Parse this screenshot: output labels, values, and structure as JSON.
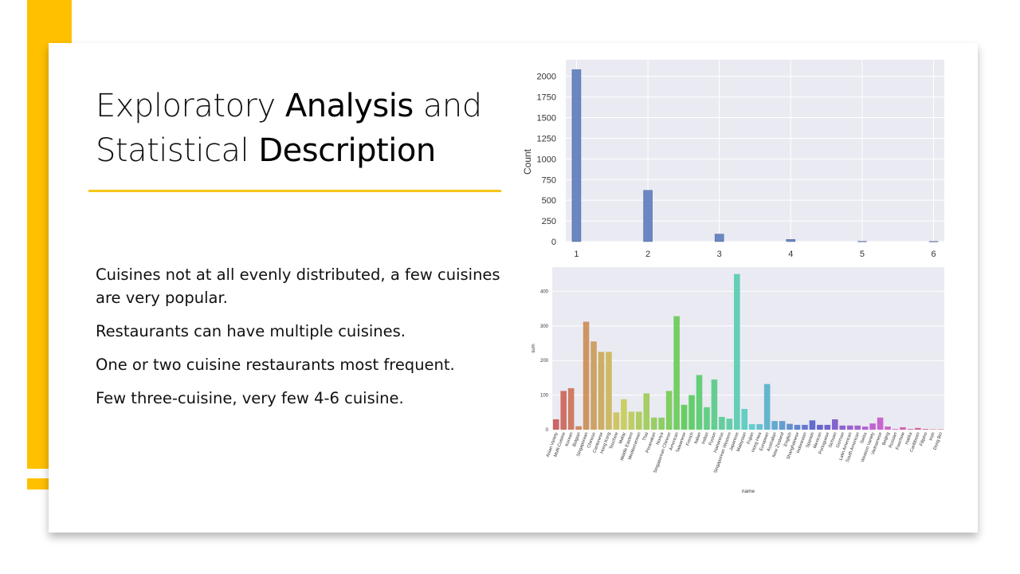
{
  "slide": {
    "title_part1": "Exploratory ",
    "title_bold1": "Analysis",
    "title_part2": " and",
    "title_part3": "Statistical ",
    "title_bold2": "Description",
    "bullets": [
      "Cuisines not at all evenly distributed, a few cuisines are very popular.",
      "Restaurants can have multiple cuisines.",
      "One or two cuisine restaurants most frequent.",
      "Few three-cuisine, very few 4-6 cuisine."
    ]
  },
  "chart_data": [
    {
      "type": "bar",
      "title": "",
      "xlabel": "",
      "ylabel": "Count",
      "x": [
        1,
        2,
        3,
        4,
        5,
        6
      ],
      "values": [
        2080,
        620,
        90,
        25,
        2,
        1
      ],
      "xticks": [
        "1",
        "2",
        "3",
        "4",
        "5",
        "6"
      ],
      "yticks": [
        "0",
        "250",
        "500",
        "750",
        "1000",
        "1250",
        "1500",
        "1750",
        "2000"
      ],
      "ylim": [
        0,
        2200
      ],
      "grid": true,
      "color": "#6A86C3"
    },
    {
      "type": "bar",
      "title": "",
      "xlabel": "name",
      "ylabel": "sum",
      "categories": [
        "Asian Variety",
        "Multi-Cuisine",
        "Korean",
        "Belgian",
        "Singaporean",
        "Chinese",
        "Cantonese",
        "Hong Kong",
        "Teochew",
        "Malay",
        "Middle Eastern",
        "Mediterranean",
        "Thai",
        "Peranakan",
        "Nonya",
        "Singaporean Chinese",
        "American",
        "Taiwanese",
        "French",
        "Italian",
        "Indian",
        "Fusion",
        "Hainanese",
        "Singaporean Western",
        "Japanese",
        "Malaysian",
        "Fujian",
        "Hong Hwa",
        "European",
        "Australian",
        "New Zealand",
        "English",
        "Shanghainese",
        "Indonesian",
        "Spanish",
        "Mexican",
        "Portuguese",
        "Sichuan",
        "German",
        "Latin American",
        "South American",
        "Swiss",
        "Western Variety",
        "Vietnamese",
        "Beijing",
        "Russian",
        "Foochow",
        "Hakka",
        "Caribbean",
        "Filipino",
        "Irish",
        "Dong Bei"
      ],
      "values": [
        30,
        112,
        120,
        10,
        312,
        255,
        225,
        225,
        50,
        88,
        52,
        52,
        105,
        35,
        35,
        112,
        328,
        72,
        100,
        158,
        65,
        145,
        37,
        32,
        450,
        60,
        16,
        16,
        132,
        25,
        25,
        17,
        14,
        14,
        27,
        14,
        14,
        30,
        12,
        12,
        12,
        9,
        18,
        35,
        9,
        2,
        7,
        2,
        5,
        2,
        1,
        1
      ],
      "yticks": [
        "0",
        "100",
        "200",
        "300",
        "400"
      ],
      "ylim": [
        0,
        470
      ],
      "grid": true
    }
  ]
}
